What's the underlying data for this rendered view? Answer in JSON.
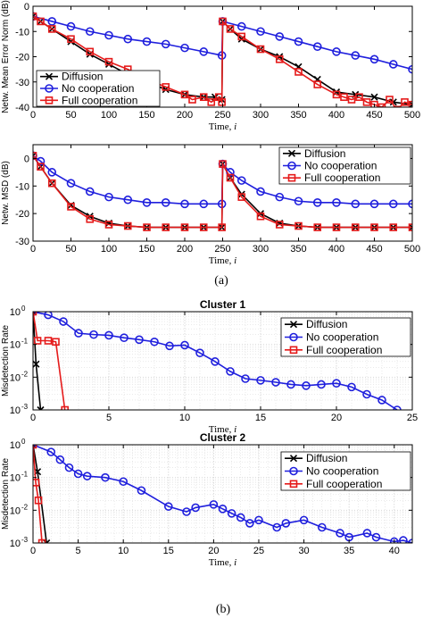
{
  "captions": [
    "(a)",
    "(b)"
  ],
  "colors": {
    "diffusion": "#000000",
    "no_cooperation": "#1f1fdd",
    "full_cooperation": "#e51b1b",
    "grid": "#d4d4d4"
  },
  "chart_data": [
    {
      "type": "line",
      "ylabel": "Netw. Mean Error Norm (dB)",
      "xlabel": "Time, i",
      "xlim": [
        0,
        500
      ],
      "ylim": [
        -40,
        0
      ],
      "xticks": [
        0,
        50,
        100,
        150,
        200,
        250,
        300,
        350,
        400,
        450,
        500
      ],
      "yticks": [
        0,
        -10,
        -20,
        -30,
        -40
      ],
      "ytick_labels": [
        "0",
        "-10",
        "-20",
        "-30",
        "-40"
      ],
      "grid": false,
      "legend_position": "bottom-left",
      "series": [
        {
          "name": "Diffusion",
          "marker": "x",
          "x": [
            0,
            10,
            25,
            50,
            75,
            100,
            125,
            150,
            175,
            200,
            225,
            240,
            249,
            250,
            260,
            275,
            300,
            325,
            350,
            375,
            400,
            425,
            450,
            475,
            500
          ],
          "y": [
            -4,
            -6,
            -9,
            -14,
            -19,
            -23,
            -27,
            -30,
            -33,
            -35,
            -36,
            -36,
            -37,
            -6,
            -9,
            -13,
            -17,
            -20,
            -24,
            -29,
            -34,
            -35,
            -36,
            -38,
            -39
          ]
        },
        {
          "name": "No cooperation",
          "marker": "o",
          "x": [
            0,
            25,
            50,
            75,
            100,
            125,
            150,
            175,
            200,
            225,
            249,
            250,
            275,
            300,
            325,
            350,
            375,
            400,
            425,
            450,
            475,
            500
          ],
          "y": [
            -4,
            -6,
            -8,
            -10,
            -11.5,
            -13,
            -14,
            -15,
            -16.5,
            -18,
            -19.5,
            -6,
            -8,
            -10,
            -12,
            -14,
            -16,
            -18,
            -19.5,
            -21,
            -23,
            -25
          ]
        },
        {
          "name": "Full cooperation",
          "marker": "s",
          "x": [
            0,
            10,
            25,
            50,
            75,
            100,
            125,
            150,
            175,
            200,
            210,
            225,
            235,
            245,
            249,
            250,
            260,
            275,
            300,
            325,
            350,
            375,
            400,
            410,
            420,
            430,
            440,
            450,
            460,
            470,
            480,
            490,
            500
          ],
          "y": [
            -4,
            -6,
            -9,
            -13,
            -18,
            -22,
            -25,
            -29,
            -32,
            -35,
            -37,
            -36,
            -38,
            -36,
            -38,
            -6,
            -9,
            -12,
            -17,
            -21,
            -26,
            -31,
            -35,
            -36,
            -37,
            -36,
            -38,
            -39,
            -40,
            -37,
            -41,
            -38,
            -39
          ]
        }
      ]
    },
    {
      "type": "line",
      "ylabel": "Netw. MSD (dB)",
      "xlabel": "Time, i",
      "xlim": [
        0,
        500
      ],
      "ylim": [
        -30,
        5
      ],
      "xticks": [
        0,
        50,
        100,
        150,
        200,
        250,
        300,
        350,
        400,
        450,
        500
      ],
      "yticks": [
        0,
        -10,
        -20,
        -30
      ],
      "ytick_labels": [
        "0",
        "-10",
        "-20",
        "-30"
      ],
      "grid": false,
      "legend_position": "top-right",
      "series": [
        {
          "name": "Diffusion",
          "marker": "x",
          "x": [
            0,
            10,
            25,
            50,
            75,
            100,
            125,
            150,
            175,
            200,
            225,
            249,
            250,
            260,
            275,
            300,
            325,
            350,
            375,
            400,
            425,
            450,
            475,
            500
          ],
          "y": [
            1,
            -3,
            -9,
            -17,
            -21,
            -23.5,
            -24.5,
            -25,
            -25,
            -25,
            -25,
            -25,
            -2,
            -7,
            -13,
            -20,
            -23.5,
            -24.5,
            -25,
            -25,
            -25,
            -25,
            -25,
            -25
          ]
        },
        {
          "name": "No cooperation",
          "marker": "o",
          "x": [
            0,
            10,
            25,
            50,
            75,
            100,
            125,
            150,
            175,
            200,
            225,
            249,
            250,
            260,
            275,
            300,
            325,
            350,
            375,
            400,
            425,
            450,
            475,
            500
          ],
          "y": [
            1,
            -1,
            -5,
            -9,
            -12,
            -14,
            -15,
            -16,
            -16,
            -16.5,
            -16.5,
            -16.5,
            -2,
            -5,
            -8,
            -12,
            -14,
            -15.5,
            -16,
            -16,
            -16.5,
            -16.5,
            -16.5,
            -16.5
          ]
        },
        {
          "name": "Full cooperation",
          "marker": "s",
          "x": [
            0,
            10,
            25,
            50,
            75,
            100,
            125,
            150,
            175,
            200,
            225,
            249,
            250,
            260,
            275,
            300,
            325,
            350,
            375,
            400,
            425,
            450,
            475,
            500
          ],
          "y": [
            1,
            -3,
            -9,
            -17.5,
            -22,
            -24,
            -24.5,
            -25,
            -25,
            -25,
            -25,
            -25,
            -2,
            -7,
            -14,
            -21,
            -24,
            -24.5,
            -25,
            -25,
            -25,
            -25,
            -25,
            -25
          ]
        }
      ]
    },
    {
      "type": "line",
      "title": "Cluster 1",
      "ylabel": "Misdetection Rate",
      "xlabel": "Time, i",
      "xlim": [
        0,
        25
      ],
      "ylim": [
        0.001,
        1
      ],
      "yscale": "log",
      "xticks": [
        0,
        5,
        10,
        15,
        20,
        25
      ],
      "yticks": [
        1,
        0.1,
        0.01,
        0.001
      ],
      "ytick_exponents": [
        "0",
        "-1",
        "-2",
        "-3"
      ],
      "grid": true,
      "legend_position": "top-right",
      "series": [
        {
          "name": "Diffusion",
          "marker": "x",
          "x": [
            0,
            0.2,
            0.5
          ],
          "y": [
            1,
            0.025,
            0.001
          ]
        },
        {
          "name": "No cooperation",
          "marker": "o",
          "x": [
            0,
            1,
            2,
            3,
            4,
            5,
            6,
            7,
            8,
            9,
            10,
            11,
            12,
            13,
            14,
            15,
            16,
            17,
            18,
            19,
            20,
            21,
            22,
            23,
            24
          ],
          "y": [
            1,
            0.8,
            0.5,
            0.22,
            0.2,
            0.19,
            0.16,
            0.14,
            0.12,
            0.09,
            0.095,
            0.055,
            0.03,
            0.015,
            0.009,
            0.008,
            0.007,
            0.006,
            0.0055,
            0.006,
            0.0065,
            0.005,
            0.003,
            0.002,
            0.001
          ]
        },
        {
          "name": "Full cooperation",
          "marker": "s",
          "x": [
            0,
            0.3,
            1,
            1.5,
            2.1
          ],
          "y": [
            1,
            0.13,
            0.13,
            0.12,
            0.001
          ]
        }
      ]
    },
    {
      "type": "line",
      "title": "Cluster 2",
      "ylabel": "Misdetection Rate",
      "xlabel": "Time, i",
      "xlim": [
        0,
        42
      ],
      "ylim": [
        0.001,
        1
      ],
      "yscale": "log",
      "xticks": [
        0,
        5,
        10,
        15,
        20,
        25,
        30,
        35,
        40
      ],
      "yticks": [
        1,
        0.1,
        0.01,
        0.001
      ],
      "ytick_exponents": [
        "0",
        "-1",
        "-2",
        "-3"
      ],
      "grid": true,
      "legend_position": "top-right",
      "series": [
        {
          "name": "Diffusion",
          "marker": "x",
          "x": [
            0,
            0.5,
            1.5
          ],
          "y": [
            1,
            0.15,
            0.001
          ]
        },
        {
          "name": "No cooperation",
          "marker": "o",
          "x": [
            0,
            2,
            3,
            4,
            5,
            6,
            8,
            10,
            12,
            15,
            17,
            18,
            20,
            21,
            22,
            23,
            24,
            25,
            27,
            28,
            30,
            32,
            34,
            35,
            37,
            38,
            40,
            41,
            42
          ],
          "y": [
            1,
            0.6,
            0.35,
            0.2,
            0.13,
            0.11,
            0.1,
            0.075,
            0.04,
            0.013,
            0.009,
            0.012,
            0.015,
            0.011,
            0.008,
            0.006,
            0.004,
            0.005,
            0.003,
            0.004,
            0.005,
            0.003,
            0.002,
            0.0015,
            0.002,
            0.0015,
            0.0011,
            0.0012,
            0.001
          ]
        },
        {
          "name": "Full cooperation",
          "marker": "s",
          "x": [
            0,
            0.3,
            0.6,
            1
          ],
          "y": [
            1,
            0.07,
            0.02,
            0.001
          ]
        }
      ]
    }
  ]
}
